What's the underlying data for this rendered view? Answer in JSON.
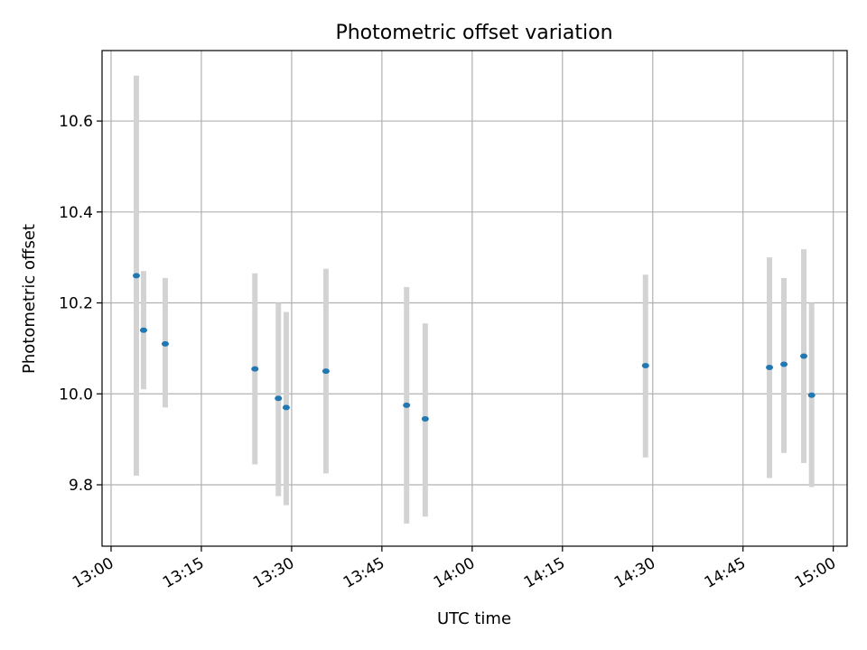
{
  "chart_data": {
    "type": "scatter",
    "title": "Photometric offset variation",
    "xlabel": "UTC time",
    "ylabel": "Photometric offset",
    "x_ticks": [
      "13:00",
      "13:15",
      "13:30",
      "13:45",
      "14:00",
      "14:15",
      "14:30",
      "14:45",
      "15:00"
    ],
    "y_ticks": [
      "9.8",
      "10.0",
      "10.2",
      "10.4",
      "10.6"
    ],
    "xlim": [
      "12:58.5",
      "15:02.3"
    ],
    "ylim": [
      9.665,
      10.755
    ],
    "grid": true,
    "colors": {
      "point": "#1f77b4",
      "errorbar": "#d3d3d3",
      "grid": "#b0b0b0"
    },
    "points": [
      {
        "x": "13:04.2",
        "y": 10.26,
        "low": 9.82,
        "high": 10.7
      },
      {
        "x": "13:05.4",
        "y": 10.14,
        "low": 10.01,
        "high": 10.27
      },
      {
        "x": "13:09.0",
        "y": 10.11,
        "low": 9.97,
        "high": 10.255
      },
      {
        "x": "13:23.9",
        "y": 10.055,
        "low": 9.845,
        "high": 10.265
      },
      {
        "x": "13:27.8",
        "y": 9.99,
        "low": 9.775,
        "high": 10.2
      },
      {
        "x": "13:29.1",
        "y": 9.97,
        "low": 9.755,
        "high": 10.18
      },
      {
        "x": "13:35.7",
        "y": 10.05,
        "low": 9.825,
        "high": 10.275
      },
      {
        "x": "13:49.1",
        "y": 9.975,
        "low": 9.715,
        "high": 10.235
      },
      {
        "x": "13:52.2",
        "y": 9.945,
        "low": 9.73,
        "high": 10.155
      },
      {
        "x": "14:28.8",
        "y": 10.062,
        "low": 9.86,
        "high": 10.262
      },
      {
        "x": "14:49.4",
        "y": 10.058,
        "low": 9.815,
        "high": 10.3
      },
      {
        "x": "14:51.8",
        "y": 10.065,
        "low": 9.87,
        "high": 10.255
      },
      {
        "x": "14:55.1",
        "y": 10.083,
        "low": 9.848,
        "high": 10.318
      },
      {
        "x": "14:56.4",
        "y": 9.997,
        "low": 9.795,
        "high": 10.2
      }
    ]
  }
}
